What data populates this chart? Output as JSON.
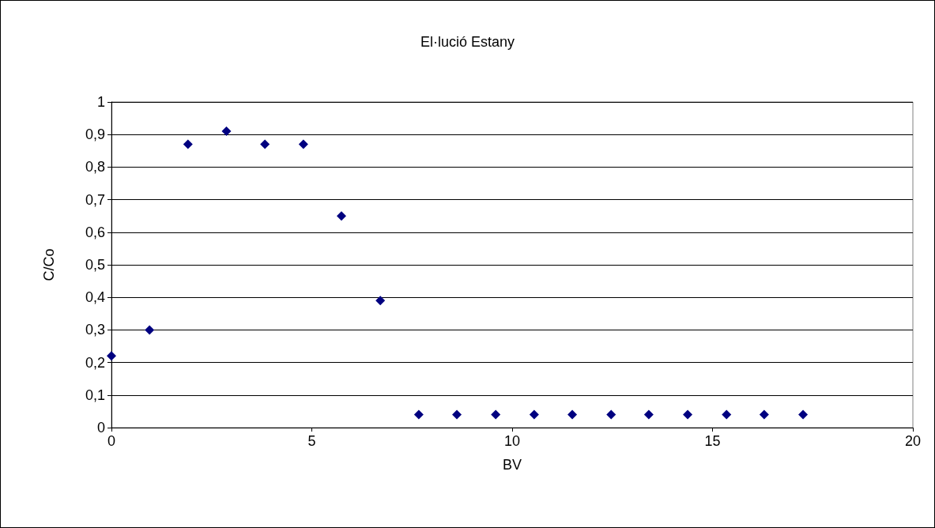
{
  "chart_data": {
    "type": "scatter",
    "title": "El·lució Estany",
    "xlabel": "BV",
    "ylabel": "C/Co",
    "x": [
      0,
      0.95,
      1.91,
      2.87,
      3.83,
      4.79,
      5.74,
      6.71,
      7.67,
      8.62,
      9.59,
      10.55,
      11.5,
      12.47,
      13.41,
      14.38,
      15.35,
      16.29,
      17.26
    ],
    "series": [
      {
        "color": "#000080",
        "values": [
          0.22,
          0.3,
          0.87,
          0.91,
          0.87,
          0.87,
          0.65,
          0.39,
          0.04,
          0.04,
          0.04,
          0.04,
          0.04,
          0.04,
          0.04,
          0.04,
          0.04,
          0.04,
          0.04
        ]
      }
    ],
    "xlim": [
      0,
      20
    ],
    "xticks": [
      0,
      5,
      10,
      15,
      20
    ],
    "ylim": [
      0,
      1
    ],
    "yticks": [
      0,
      {
        "value": 0.1,
        "label": "0,1"
      },
      {
        "value": 0.2,
        "label": "0,2"
      },
      {
        "value": 0.3,
        "label": "0,3"
      },
      {
        "value": 0.4,
        "label": "0,4"
      },
      {
        "value": 0.5,
        "label": "0,5"
      },
      {
        "value": 0.6,
        "label": "0,6"
      },
      {
        "value": 0.7,
        "label": "0,7"
      },
      {
        "value": 0.8,
        "label": "0,8"
      },
      {
        "value": 0.9,
        "label": "0,9"
      },
      1
    ],
    "grid": "y",
    "marker": "diamond"
  }
}
